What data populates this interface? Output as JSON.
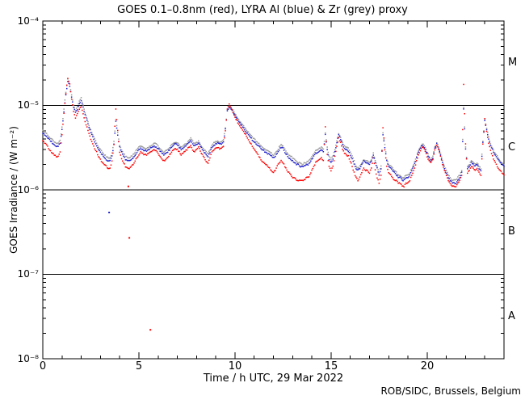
{
  "figure": {
    "credit": "ROB/SIDC, Brussels, Belgium"
  },
  "chart_data": {
    "type": "scatter",
    "title": "GOES 0.1–0.8nm (red), LYRA Al (blue) & Zr (grey) proxy",
    "xlabel": "Time / h UTC, 29 Mar 2022",
    "ylabel": "GOES Irradiance / (W m⁻²)",
    "date": "29 Mar 2022",
    "xlim": [
      0,
      24
    ],
    "ylim_log10": [
      -8,
      -4
    ],
    "y_scale": "log",
    "grid": "off",
    "xticks": [
      0,
      5,
      10,
      15,
      20
    ],
    "xtick_labels": [
      "0",
      "5",
      "10",
      "15",
      "20"
    ],
    "xtick_minor_step_h": 1,
    "ytick_log10": [
      -4,
      -5,
      -6,
      -7,
      -8
    ],
    "ytick_labels": [
      "10⁻⁴",
      "10⁻⁵",
      "10⁻⁶",
      "10⁻⁷",
      "10⁻⁸"
    ],
    "hlines_flux": [
      1e-05,
      1e-06,
      1e-07
    ],
    "class_bands": [
      {
        "label": "M",
        "range_flux": [
          1e-05,
          0.0001
        ]
      },
      {
        "label": "C",
        "range_flux": [
          1e-06,
          1e-05
        ]
      },
      {
        "label": "B",
        "range_flux": [
          1e-07,
          1e-06
        ]
      },
      {
        "label": "A",
        "range_flux": [
          1e-08,
          1e-07
        ]
      }
    ],
    "x_unit": "h UTC",
    "flux_unit": "W m^-2",
    "flux_scale": 1e-07,
    "x_start": 0,
    "x_step": 0.1,
    "series": [
      {
        "name": "LYRA Zr proxy",
        "color": "#999999",
        "values": [
          50,
          48,
          46,
          43,
          41,
          39,
          37,
          36,
          36,
          39,
          55,
          90,
          145,
          205,
          180,
          132,
          100,
          88,
          95,
          112,
          122,
          100,
          82,
          70,
          58,
          51,
          45,
          40,
          36,
          32,
          30,
          28,
          26,
          25,
          24,
          24,
          27,
          37,
          68,
          48,
          34,
          30,
          27,
          25,
          24,
          24,
          25,
          26,
          28,
          30,
          32,
          33,
          32,
          31,
          31,
          32,
          33,
          34,
          36,
          35,
          33,
          31,
          29,
          28,
          29,
          30,
          32,
          34,
          36,
          37,
          36,
          34,
          32,
          33,
          35,
          36,
          39,
          41,
          38,
          35,
          36,
          38,
          35,
          32,
          30,
          28,
          27,
          30,
          34,
          36,
          37,
          38,
          37,
          37,
          39,
          55,
          88,
          97,
          93,
          86,
          79,
          73,
          68,
          63,
          59,
          55,
          51,
          48,
          45,
          42,
          40,
          38,
          36,
          34,
          32,
          31,
          30,
          29,
          28,
          27,
          26,
          27,
          29,
          32,
          34,
          33,
          30,
          28,
          26,
          25,
          24,
          23,
          22,
          21,
          21,
          20,
          21,
          21,
          22,
          23,
          25,
          27,
          29,
          30,
          31,
          32,
          30,
          47,
          32,
          25,
          23,
          25,
          30,
          38,
          47,
          42,
          36,
          33,
          32,
          31,
          28,
          25,
          22,
          19,
          18,
          19,
          21,
          23,
          22,
          22,
          21,
          23,
          27,
          22,
          19,
          16,
          19,
          47,
          34,
          23,
          20,
          19,
          18,
          17,
          16,
          15,
          15,
          14,
          14,
          15,
          15,
          16,
          18,
          20,
          23,
          27,
          31,
          34,
          35,
          32,
          28,
          25,
          23,
          25,
          32,
          36,
          32,
          27,
          22,
          19,
          17,
          15,
          14,
          13,
          13,
          13,
          14,
          15,
          17,
          95,
          32,
          19,
          20,
          22,
          21,
          20,
          21,
          19,
          18,
          38,
          68,
          54,
          42,
          35,
          31,
          28,
          26,
          24,
          22,
          21,
          20
        ]
      },
      {
        "name": "LYRA Al proxy",
        "color": "#2222cc",
        "values": [
          47,
          45,
          43,
          40,
          38,
          36,
          34,
          33,
          33,
          36,
          52,
          85,
          135,
          190,
          170,
          125,
          95,
          83,
          90,
          105,
          115,
          95,
          78,
          66,
          55,
          48,
          42,
          37,
          33,
          30,
          28,
          26,
          24,
          23,
          22,
          22,
          25,
          35,
          65,
          45,
          32,
          28,
          25,
          23,
          22,
          22,
          23,
          24,
          26,
          28,
          30,
          31,
          30,
          29,
          29,
          30,
          31,
          32,
          33,
          32,
          31,
          29,
          27,
          26,
          27,
          28,
          30,
          32,
          34,
          35,
          34,
          32,
          30,
          31,
          33,
          34,
          36,
          38,
          35,
          33,
          34,
          36,
          33,
          30,
          28,
          26,
          25,
          28,
          32,
          34,
          35,
          36,
          35,
          35,
          37,
          52,
          85,
          94,
          90,
          83,
          76,
          70,
          65,
          60,
          56,
          52,
          48,
          45,
          42,
          39,
          37,
          35,
          33,
          32,
          30,
          29,
          28,
          27,
          26,
          25,
          24,
          25,
          27,
          30,
          32,
          31,
          28,
          26,
          24,
          23,
          22,
          21,
          20,
          20,
          19,
          19,
          19,
          20,
          20,
          21,
          23,
          25,
          27,
          28,
          29,
          30,
          28,
          45,
          30,
          23,
          21,
          23,
          28,
          36,
          45,
          40,
          34,
          31,
          30,
          29,
          26,
          23,
          20,
          18,
          17,
          18,
          20,
          22,
          21,
          21,
          20,
          22,
          26,
          21,
          18,
          15,
          18,
          45,
          32,
          22,
          19,
          18,
          17,
          16,
          15,
          14,
          14,
          13,
          13,
          14,
          14,
          15,
          17,
          19,
          22,
          26,
          30,
          33,
          33,
          30,
          27,
          24,
          22,
          24,
          31,
          35,
          31,
          26,
          21,
          18,
          16,
          14,
          13,
          12,
          12,
          12,
          13,
          14,
          16,
          90,
          30,
          18,
          19,
          21,
          20,
          19,
          20,
          18,
          17,
          36,
          66,
          52,
          40,
          33,
          30,
          27,
          25,
          23,
          21,
          20,
          19
        ]
      },
      {
        "name": "GOES 0.1-0.8nm",
        "color": "#ff0000",
        "values": [
          38,
          36,
          34,
          31,
          29,
          27,
          26,
          25,
          25,
          28,
          45,
          80,
          140,
          210,
          180,
          120,
          85,
          72,
          80,
          90,
          96,
          80,
          65,
          55,
          46,
          40,
          35,
          31,
          28,
          25,
          23,
          21,
          20,
          19,
          18,
          18,
          22,
          35,
          90,
          50,
          28,
          23,
          21,
          19,
          18,
          18,
          19,
          20,
          22,
          24,
          26,
          28,
          27,
          26,
          26,
          27,
          28,
          29,
          30,
          29,
          27,
          25,
          23,
          22,
          23,
          24,
          26,
          28,
          30,
          31,
          30,
          28,
          26,
          27,
          29,
          30,
          32,
          33,
          30,
          28,
          30,
          32,
          29,
          26,
          24,
          22,
          21,
          24,
          28,
          30,
          31,
          32,
          31,
          31,
          33,
          50,
          90,
          105,
          95,
          83,
          73,
          66,
          60,
          55,
          51,
          47,
          43,
          39,
          36,
          33,
          30,
          28,
          26,
          24,
          22,
          21,
          20,
          19,
          18,
          17,
          16,
          17,
          19,
          21,
          22,
          21,
          19,
          17,
          16,
          15,
          14,
          14,
          13,
          13,
          13,
          13,
          13,
          14,
          14,
          15,
          17,
          19,
          21,
          22,
          23,
          24,
          22,
          55,
          26,
          19,
          17,
          19,
          25,
          33,
          41,
          36,
          30,
          27,
          26,
          25,
          22,
          19,
          16,
          14,
          13,
          14,
          16,
          18,
          17,
          17,
          16,
          18,
          24,
          17,
          14,
          12,
          15,
          55,
          30,
          19,
          16,
          15,
          14,
          13,
          13,
          12,
          12,
          11,
          11,
          12,
          12,
          13,
          15,
          17,
          20,
          24,
          28,
          31,
          32,
          29,
          25,
          22,
          21,
          23,
          30,
          34,
          30,
          25,
          20,
          17,
          15,
          13,
          12,
          11,
          11,
          11,
          12,
          13,
          15,
          180,
          35,
          16,
          17,
          19,
          18,
          17,
          18,
          16,
          15,
          35,
          69,
          50,
          36,
          29,
          25,
          22,
          20,
          18,
          17,
          16,
          15
        ]
      }
    ],
    "outliers": [
      {
        "series": "LYRA Al proxy",
        "color": "#2222cc",
        "h": 3.45,
        "flux": 5.4e-07
      },
      {
        "series": "GOES 0.1-0.8nm",
        "color": "#ff0000",
        "h": 4.45,
        "flux": 1.1e-06
      },
      {
        "series": "GOES 0.1-0.8nm",
        "color": "#ff0000",
        "h": 4.5,
        "flux": 2.7e-07
      },
      {
        "series": "GOES 0.1-0.8nm",
        "color": "#ff0000",
        "h": 5.6,
        "flux": 2.2e-08
      }
    ]
  }
}
